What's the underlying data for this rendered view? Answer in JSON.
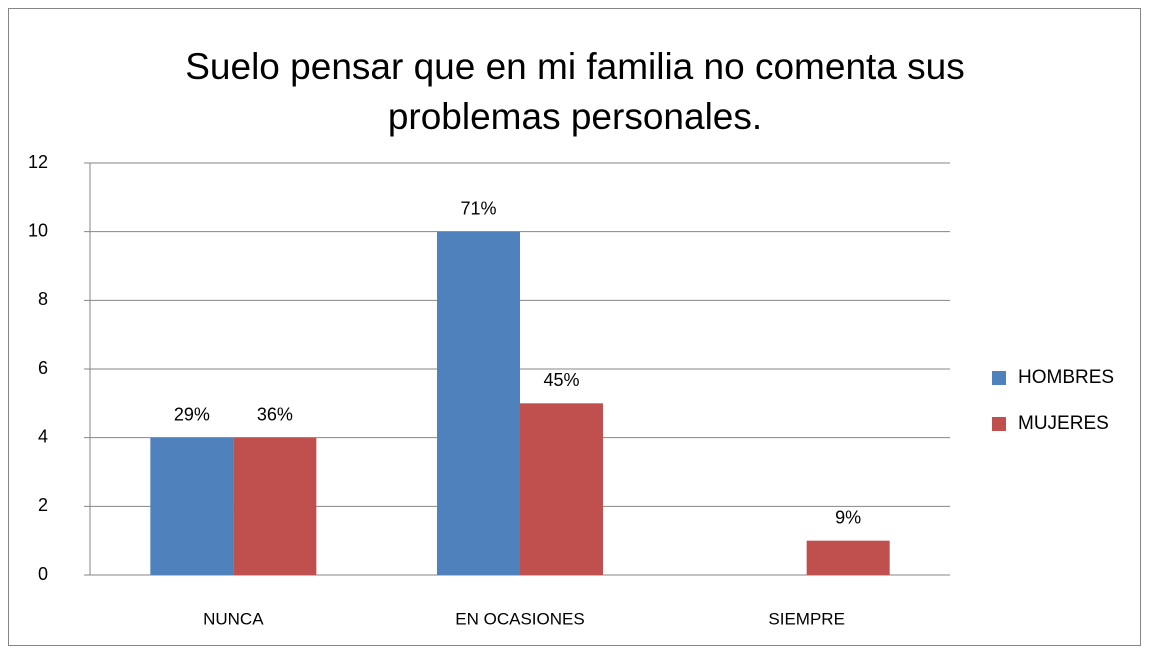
{
  "chart_data": {
    "type": "bar",
    "title": "Suelo pensar que en mi familia no comenta sus problemas personales.",
    "categories": [
      "NUNCA",
      "EN OCASIONES",
      "SIEMPRE"
    ],
    "series": [
      {
        "name": "HOMBRES",
        "color": "#4f81bd",
        "values": [
          4,
          10,
          0
        ],
        "annotations": [
          "29%",
          "71%",
          null
        ]
      },
      {
        "name": "MUJERES",
        "color": "#c0504d",
        "values": [
          4,
          5,
          1
        ],
        "annotations": [
          "36%",
          "45%",
          "9%"
        ]
      }
    ],
    "ylim": [
      0,
      12
    ],
    "yticks": [
      0,
      2,
      4,
      6,
      8,
      10,
      12
    ],
    "grid": true,
    "legend": "right"
  }
}
